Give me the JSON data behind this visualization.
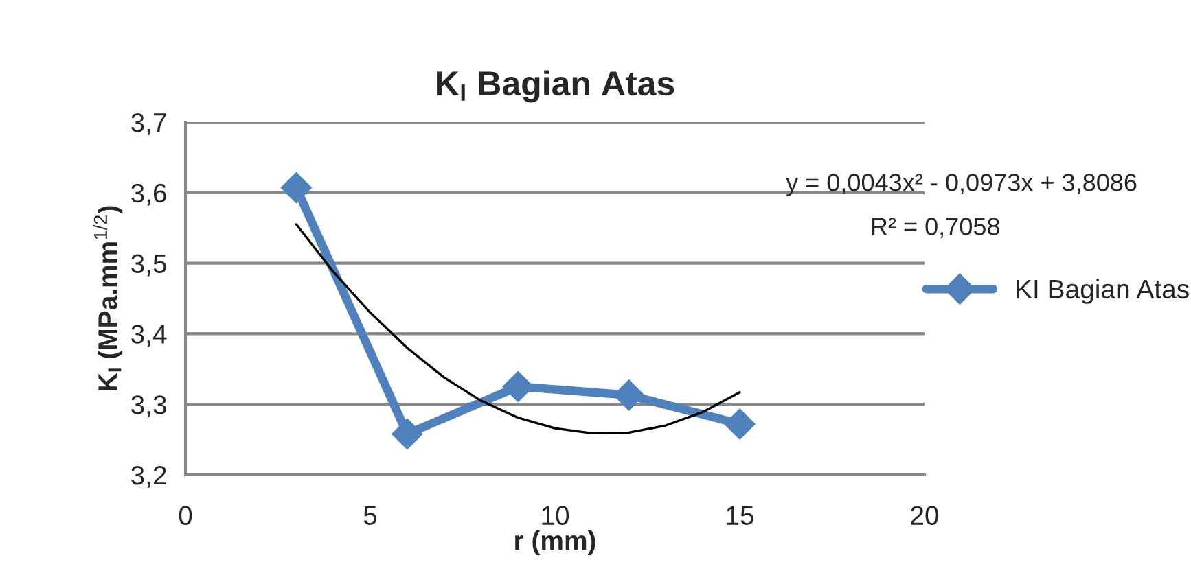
{
  "chart_data": {
    "type": "line",
    "title": "K$_{I}$ Bagian Atas",
    "xlabel": "r (mm)",
    "ylabel": "K$_{I}$ (MPa.mm$^{1/2}$)",
    "series": [
      {
        "name": "KI Bagian Atas",
        "color": "#4f81bd",
        "marker": "diamond",
        "x": [
          3,
          6,
          9,
          12,
          15
        ],
        "values": [
          3.607,
          3.258,
          3.325,
          3.313,
          3.272
        ]
      },
      {
        "type": "line",
        "color": "#000000",
        "marker": "none",
        "x": [
          3,
          4,
          5,
          6,
          7,
          8,
          9,
          10,
          11,
          12,
          13,
          14,
          15
        ],
        "values": [
          3.555,
          3.488,
          3.43,
          3.38,
          3.338,
          3.305,
          3.281,
          3.266,
          3.259,
          3.26,
          3.27,
          3.289,
          3.317
        ]
      }
    ],
    "annotations": [
      "y = 0,0043x² - 0,0973x + 3,8086",
      "R² = 0,7058"
    ],
    "xlim": [
      0,
      20
    ],
    "xticks": [
      0,
      5,
      10,
      15,
      20
    ],
    "ylim": [
      3.2,
      3.7
    ],
    "yticks": [
      {
        "value": 3.2,
        "label": "3,2"
      },
      {
        "value": 3.3,
        "label": "3,3"
      },
      {
        "value": 3.4,
        "label": "3,4"
      },
      {
        "value": 3.5,
        "label": "3,5"
      },
      {
        "value": 3.6,
        "label": "3,6"
      },
      {
        "value": 3.7,
        "label": "3,7"
      }
    ],
    "grid": "y",
    "legend": "right",
    "line_style": "solid"
  }
}
